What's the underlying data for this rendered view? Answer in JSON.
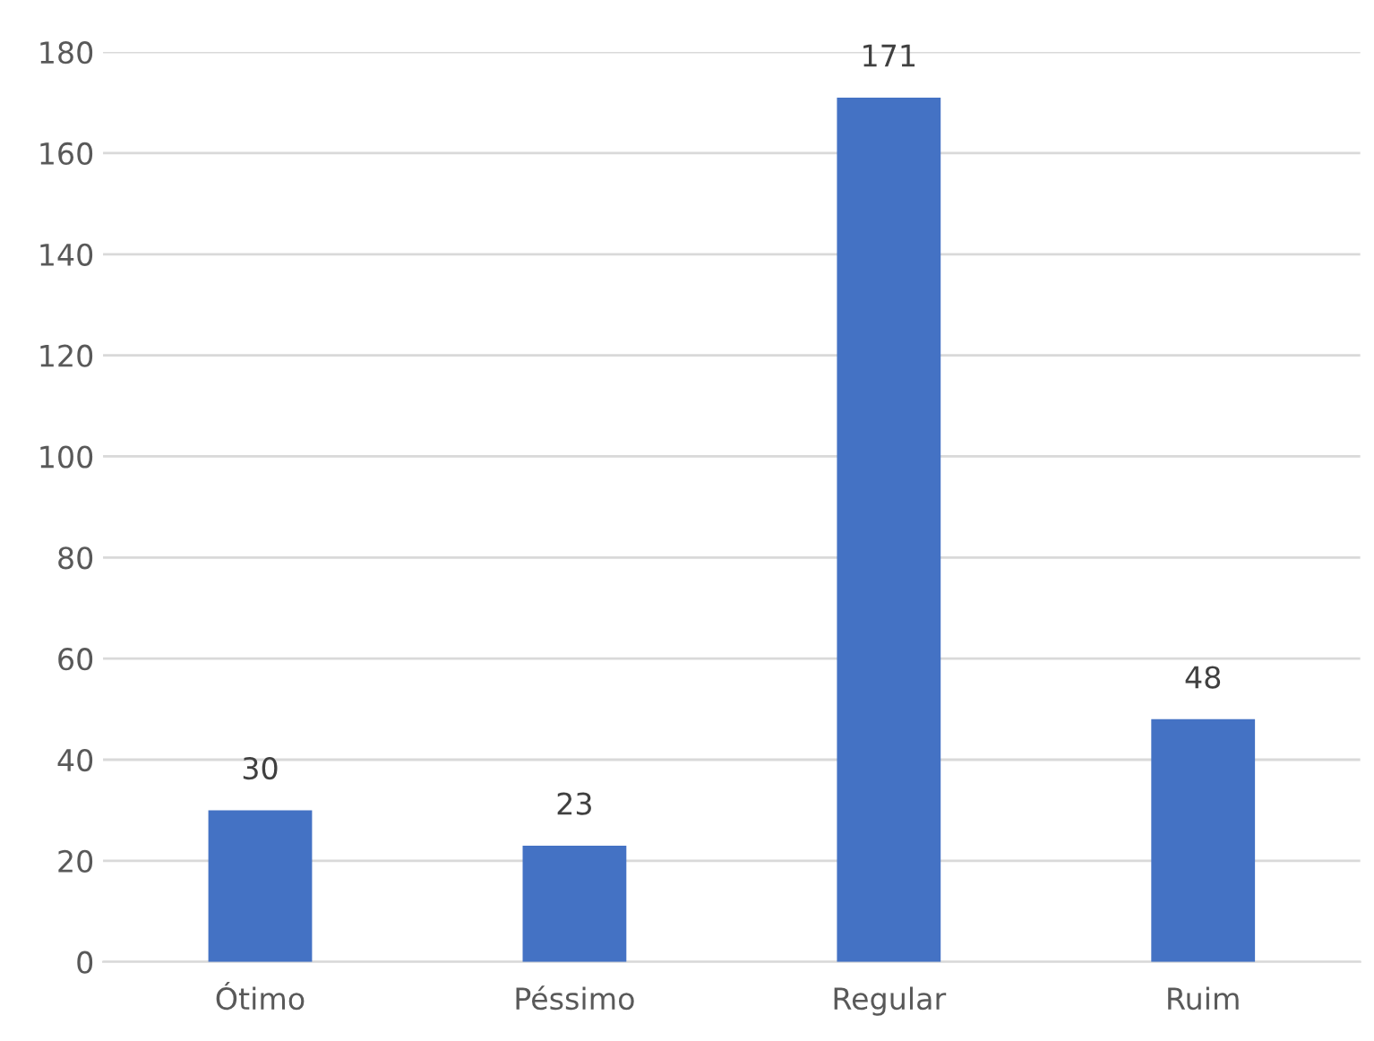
{
  "chart_data": {
    "type": "bar",
    "categories": [
      "Ótimo",
      "Péssimo",
      "Regular",
      "Ruim"
    ],
    "values": [
      30,
      23,
      171,
      48
    ],
    "color": "#4472c4",
    "ylim": [
      0,
      180
    ],
    "yticks": [
      0,
      20,
      40,
      60,
      80,
      100,
      120,
      140,
      160,
      180
    ],
    "grid": "y",
    "data_labels": true
  }
}
